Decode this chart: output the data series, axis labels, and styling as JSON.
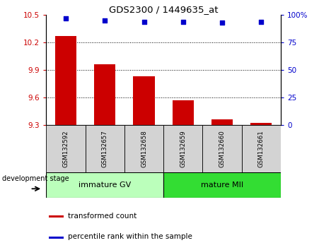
{
  "title": "GDS2300 / 1449635_at",
  "samples": [
    "GSM132592",
    "GSM132657",
    "GSM132658",
    "GSM132659",
    "GSM132660",
    "GSM132661"
  ],
  "bar_values": [
    10.27,
    9.96,
    9.83,
    9.57,
    9.36,
    9.32
  ],
  "percentile_values": [
    97,
    95,
    94,
    94,
    93,
    94
  ],
  "ylim_left": [
    9.3,
    10.5
  ],
  "ylim_right": [
    0,
    100
  ],
  "yticks_left": [
    9.3,
    9.6,
    9.9,
    10.2,
    10.5
  ],
  "yticks_right": [
    0,
    25,
    50,
    75,
    100
  ],
  "bar_color": "#cc0000",
  "dot_color": "#0000cc",
  "groups": [
    {
      "label": "immature GV",
      "indices": [
        0,
        1,
        2
      ],
      "color": "#bbffbb"
    },
    {
      "label": "mature MII",
      "indices": [
        3,
        4,
        5
      ],
      "color": "#33dd33"
    }
  ],
  "group_label": "development stage",
  "legend_bar_label": "transformed count",
  "legend_dot_label": "percentile rank within the sample",
  "tick_label_color_left": "#cc0000",
  "tick_label_color_right": "#0000cc",
  "base_value": 9.3,
  "sample_box_color": "#d3d3d3",
  "grid_dotted_at": [
    9.6,
    9.9,
    10.2
  ]
}
